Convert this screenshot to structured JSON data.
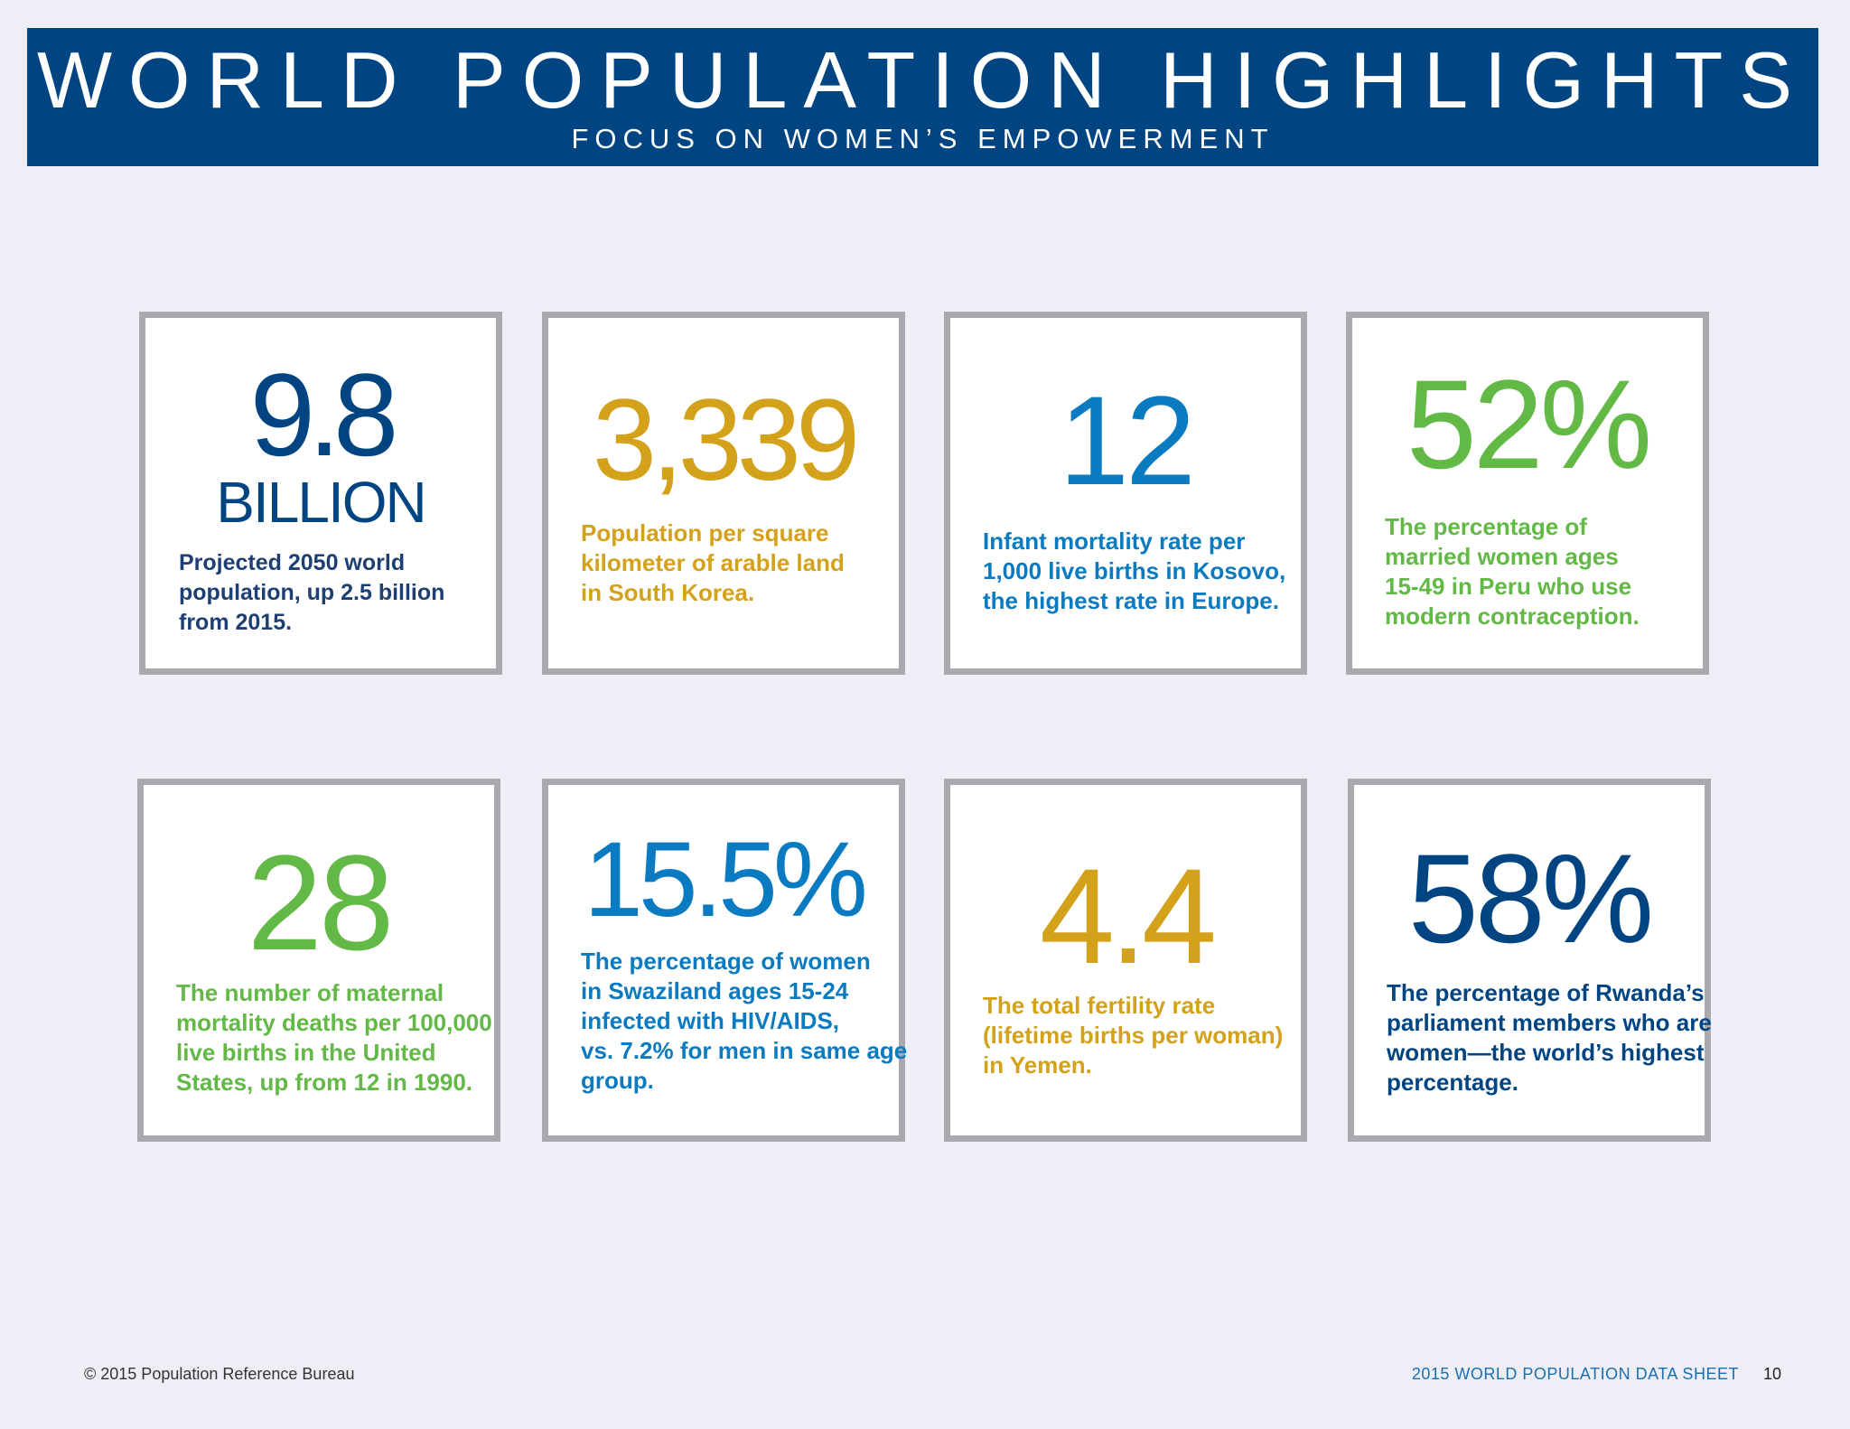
{
  "header": {
    "title": "WORLD POPULATION HIGHLIGHTS",
    "subtitle": "FOCUS ON WOMEN’S EMPOWERMENT"
  },
  "colors": {
    "navy": "#004581",
    "gold": "#d4a21a",
    "blue": "#0a7bc1",
    "green": "#62b946",
    "card_border": "#a9a9ae"
  },
  "cards": [
    {
      "value": "9.8",
      "unit": "BILLION",
      "lines": [
        "Projected 2050 world",
        "population, up 2.5 billion",
        "from 2015."
      ]
    },
    {
      "value": "3,339",
      "lines": [
        "Population per square",
        "kilometer of arable land",
        "in South Korea."
      ]
    },
    {
      "value": "12",
      "lines": [
        "Infant mortality rate per",
        "1,000 live births in Kosovo,",
        "the highest rate in Europe."
      ]
    },
    {
      "value": "52%",
      "lines": [
        "The percentage of",
        "married women ages",
        "15-49 in Peru who use",
        "modern contraception."
      ]
    },
    {
      "value": "28",
      "lines": [
        "The number of maternal",
        "mortality deaths per 100,000",
        "live births in the United",
        "States, up from 12 in 1990."
      ]
    },
    {
      "value": "15.5%",
      "lines": [
        "The percentage of women",
        "in Swaziland ages 15-24",
        "infected with HIV/AIDS,",
        "vs. 7.2% for men in same age",
        "group."
      ]
    },
    {
      "value": "4.4",
      "lines": [
        "The total fertility rate",
        "(lifetime births per woman)",
        "in Yemen."
      ]
    },
    {
      "value": "58%",
      "lines": [
        "The percentage of Rwanda’s",
        "parliament members who are",
        "women—the world’s highest",
        "percentage."
      ]
    }
  ],
  "footer": {
    "copyright": "© 2015 Population Reference Bureau",
    "sheet_name": "2015 WORLD POPULATION DATA SHEET",
    "page_number": "10"
  }
}
